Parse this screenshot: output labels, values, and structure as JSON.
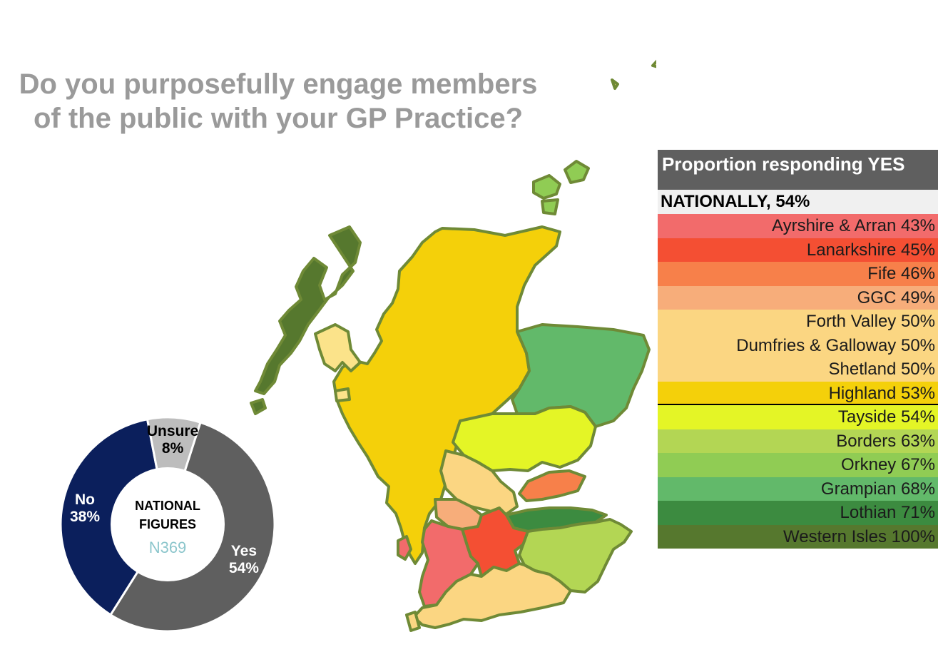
{
  "title": "Do you purposefully engage members of the public with your GP Practice?",
  "legend": {
    "header": "Proportion responding YES",
    "national": "NATIONALLY, 54%",
    "rows": [
      {
        "label": "Ayrshire & Arran 43%",
        "color": "#f26b6b"
      },
      {
        "label": "Lanarkshire 45%",
        "color": "#f44f33"
      },
      {
        "label": "Fife 46%",
        "color": "#f7804a"
      },
      {
        "label": "GGC 49%",
        "color": "#f7ad7a"
      },
      {
        "label": "Forth Valley 50%",
        "color": "#fbd682"
      },
      {
        "label": "Dumfries & Galloway 50%",
        "color": "#fbd682"
      },
      {
        "label": "Shetland 50%",
        "color": "#fbd682"
      },
      {
        "label": "Highland 53%",
        "color": "#f4d00a"
      },
      {
        "label": "Tayside 54%",
        "color": "#e4f526"
      },
      {
        "label": "Borders 63%",
        "color": "#b3d654"
      },
      {
        "label": "Orkney 67%",
        "color": "#90cc54"
      },
      {
        "label": "Grampian 68%",
        "color": "#62b96a"
      },
      {
        "label": "Lothian 71%",
        "color": "#3c8b40"
      },
      {
        "label": "Western Isles 100%",
        "color": "#56782e"
      }
    ]
  },
  "chart_data": [
    {
      "type": "pie",
      "center_label": [
        "National",
        "figures"
      ],
      "sample": "N369",
      "slices": [
        {
          "label": "Yes",
          "value": 54,
          "display": "54%",
          "color": "#5f5f5f"
        },
        {
          "label": "No",
          "value": 38,
          "display": "38%",
          "color": "#0b1f5c"
        },
        {
          "label": "Unsure",
          "value": 8,
          "display": "8%",
          "color": "#bdbdbd"
        }
      ]
    },
    {
      "type": "map",
      "regions": [
        {
          "name": "Ayrshire & Arran",
          "value": 43
        },
        {
          "name": "Lanarkshire",
          "value": 45
        },
        {
          "name": "Fife",
          "value": 46
        },
        {
          "name": "GGC",
          "value": 49
        },
        {
          "name": "Forth Valley",
          "value": 50
        },
        {
          "name": "Dumfries & Galloway",
          "value": 50
        },
        {
          "name": "Shetland",
          "value": 50
        },
        {
          "name": "Highland",
          "value": 53
        },
        {
          "name": "Tayside",
          "value": 54
        },
        {
          "name": "Borders",
          "value": 63
        },
        {
          "name": "Orkney",
          "value": 67
        },
        {
          "name": "Grampian",
          "value": 68
        },
        {
          "name": "Lothian",
          "value": 71
        },
        {
          "name": "Western Isles",
          "value": 100
        }
      ]
    }
  ]
}
